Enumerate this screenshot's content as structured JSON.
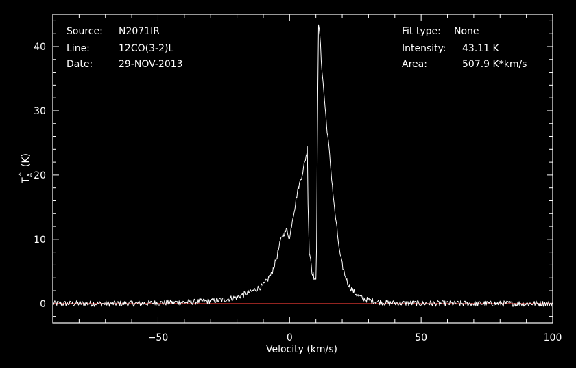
{
  "info": {
    "source_label": "Source:",
    "source_value": "N2071IR",
    "line_label": "Line:",
    "line_value": "12CO(3-2)L",
    "date_label": "Date:",
    "date_value": "29-NOV-2013",
    "fit_label": "Fit type:",
    "fit_value": "None",
    "intensity_label": "Intensity:",
    "intensity_value": "43.11 K",
    "area_label": "Area:",
    "area_value": "507.9 K*km/s"
  },
  "colors": {
    "background": "#000000",
    "foreground": "#ffffff",
    "baseline": "#c4302b"
  },
  "chart_data": {
    "type": "line",
    "title": "",
    "xlabel": "Velocity (km/s)",
    "ylabel_main": "T",
    "ylabel_sub": "A",
    "ylabel_sup": "*",
    "ylabel_unit": "(K)",
    "xlim": [
      -90,
      100
    ],
    "ylim": [
      -3,
      45
    ],
    "x_ticks": [
      -50,
      0,
      50,
      100
    ],
    "x_tick_labels": [
      "−50",
      "0",
      "50",
      "100"
    ],
    "y_ticks": [
      0,
      10,
      20,
      30,
      40
    ],
    "y_tick_labels": [
      "0",
      "10",
      "20",
      "30",
      "40"
    ],
    "grid": false,
    "baseline_y": 0,
    "series": [
      {
        "color": "#ffffff",
        "x": [
          -90,
          -60,
          -40,
          -30,
          -25,
          -20,
          -15,
          -10,
          -7,
          -5,
          -3,
          -1,
          0,
          1,
          2,
          3,
          4,
          5,
          6,
          6.5,
          6.8,
          7,
          7.5,
          8,
          8.5,
          9,
          9.5,
          10,
          10.3,
          10.6,
          11,
          11.5,
          12,
          13,
          14,
          15,
          16,
          17,
          18,
          19,
          20,
          21,
          22,
          23,
          24,
          25,
          26,
          28,
          30,
          33,
          37,
          45,
          60,
          80,
          100
        ],
        "y": [
          0,
          0,
          0.2,
          0.4,
          0.6,
          1.0,
          1.8,
          2.8,
          4.5,
          7.0,
          10.5,
          11.5,
          10.0,
          13.0,
          15.0,
          17.5,
          19.0,
          20.5,
          22.5,
          23.5,
          24.3,
          16.0,
          8.0,
          7.0,
          5.0,
          4.5,
          3.8,
          3.5,
          10.0,
          30.0,
          43.0,
          42.0,
          38.0,
          33.0,
          28.0,
          24.0,
          19.5,
          15.0,
          11.5,
          8.0,
          6.0,
          4.5,
          3.3,
          2.5,
          2.0,
          1.6,
          1.2,
          0.8,
          0.5,
          0.3,
          0.1,
          0.05,
          0,
          0,
          0
        ]
      }
    ]
  }
}
